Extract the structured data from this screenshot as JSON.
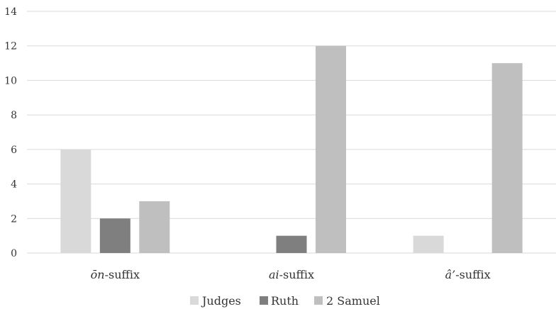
{
  "chart_data": {
    "type": "bar",
    "title": "",
    "xlabel": "",
    "ylabel": "",
    "categories": [
      {
        "prefix": "ōn",
        "suffix": "-suffix"
      },
      {
        "prefix": "ai",
        "suffix": "-suffix"
      },
      {
        "prefix": "â’",
        "suffix": "-suffix"
      }
    ],
    "series": [
      {
        "name": "Judges",
        "color": "#d9d9d9",
        "values": [
          6,
          0,
          1
        ]
      },
      {
        "name": "Ruth",
        "color": "#7f7f7f",
        "values": [
          2,
          1,
          0
        ]
      },
      {
        "name": "2 Samuel",
        "color": "#bfbfbf",
        "values": [
          3,
          12,
          11
        ]
      }
    ],
    "ylim": [
      0,
      14
    ],
    "yticks": [
      0,
      2,
      4,
      6,
      8,
      10,
      12,
      14
    ],
    "grid": true,
    "legend_position": "bottom"
  }
}
